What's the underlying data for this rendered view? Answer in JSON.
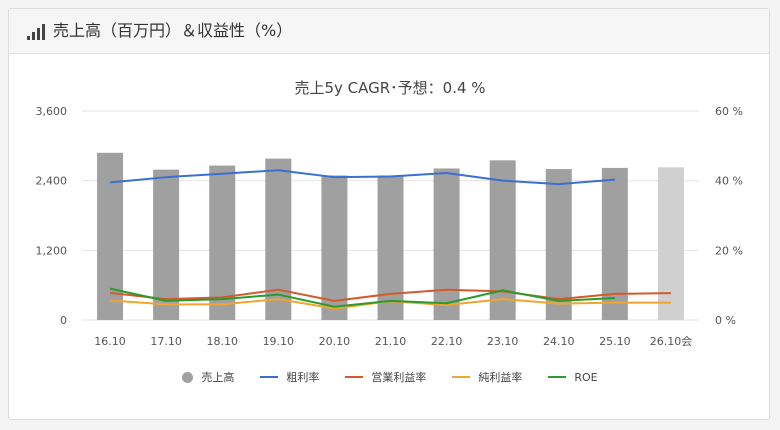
{
  "header": {
    "title": "売上高（百万円）＆収益性（%）",
    "icon": "bar-chart-icon"
  },
  "colors": {
    "bar": "#a0a0a0",
    "bar_forecast": "#d0d0d0",
    "gross_margin": "#3b6fd1",
    "operating_margin": "#d35a2c",
    "net_margin": "#f0a531",
    "roe": "#2c9a2c",
    "grid": "#e6e6e6"
  },
  "chart_data": {
    "type": "bar",
    "title": "売上5y CAGR･予想：0.4 %",
    "categories": [
      "16.10",
      "17.10",
      "18.10",
      "19.10",
      "20.10",
      "21.10",
      "22.10",
      "23.10",
      "24.10",
      "25.10",
      "26.10会"
    ],
    "y_left": {
      "ylim": [
        0,
        3600
      ],
      "ticks": [
        "0",
        "1,200",
        "2,400",
        "3,600"
      ]
    },
    "y_right": {
      "ylim": [
        0,
        60
      ],
      "ticks": [
        "0 %",
        "20 %",
        "40 %",
        "60 %"
      ]
    },
    "bars": {
      "name": "売上高",
      "values": [
        2880,
        2590,
        2660,
        2780,
        2490,
        2490,
        2610,
        2750,
        2600,
        2620,
        2630
      ],
      "forecast_index": 10
    },
    "series": [
      {
        "name": "粗利率",
        "axis": "right",
        "values": [
          39.5,
          41.0,
          42.0,
          43.0,
          41.0,
          41.2,
          42.2,
          40.0,
          39.0,
          40.3,
          null
        ]
      },
      {
        "name": "営業利益率",
        "axis": "right",
        "values": [
          7.8,
          6.0,
          6.5,
          8.7,
          5.5,
          7.5,
          8.7,
          8.2,
          6.0,
          7.5,
          7.7
        ]
      },
      {
        "name": "純利益率",
        "axis": "right",
        "values": [
          5.6,
          4.5,
          4.5,
          6.0,
          3.3,
          5.4,
          4.3,
          6.0,
          4.7,
          5.0,
          5.0
        ]
      },
      {
        "name": "ROE",
        "axis": "right",
        "values": [
          9.0,
          5.5,
          6.0,
          7.3,
          3.8,
          5.5,
          4.8,
          8.5,
          5.5,
          6.3,
          null
        ]
      }
    ],
    "grid": true,
    "legend": "bottom"
  }
}
